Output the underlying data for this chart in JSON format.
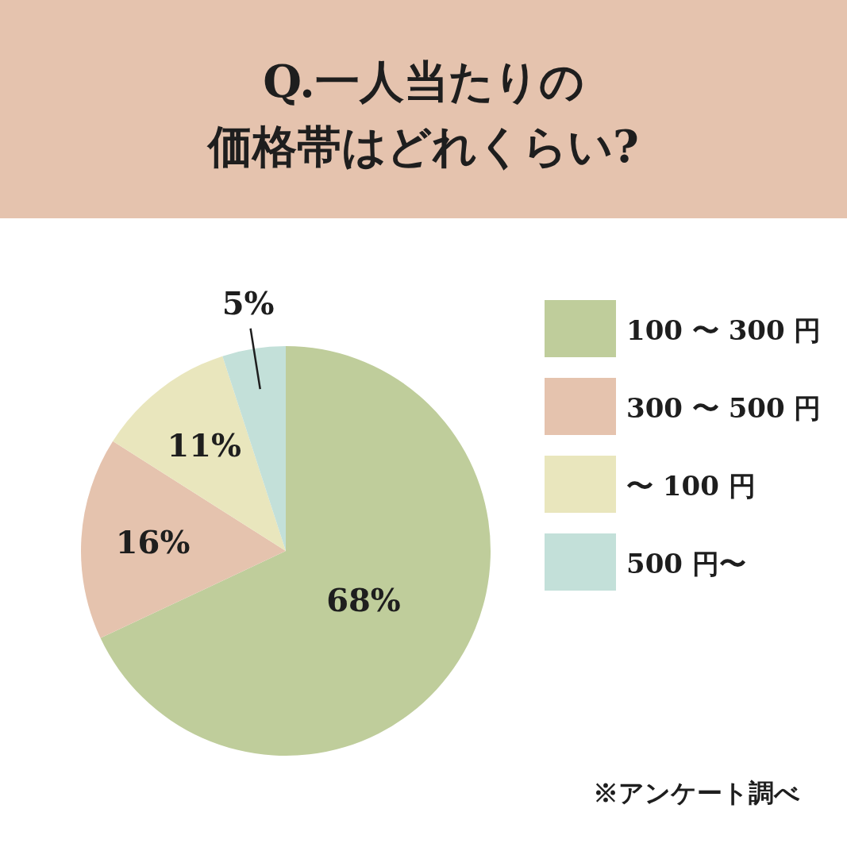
{
  "chart_data": {
    "type": "pie",
    "title": "Q.一人当たりの",
    "subtitle": "価格帯はどれくらい?",
    "categories": [
      "100 〜 300 円",
      "300 〜 500 円",
      "〜 100 円",
      "500 円〜"
    ],
    "values": [
      68,
      16,
      11,
      5
    ],
    "colors": [
      "#bfcd9b",
      "#e5c3ae",
      "#e9e6bd",
      "#c3e0d9"
    ],
    "value_labels": [
      "68%",
      "16%",
      "11%",
      "5%"
    ],
    "legend": "right",
    "annotations": [
      "※アンケート調べ"
    ]
  }
}
